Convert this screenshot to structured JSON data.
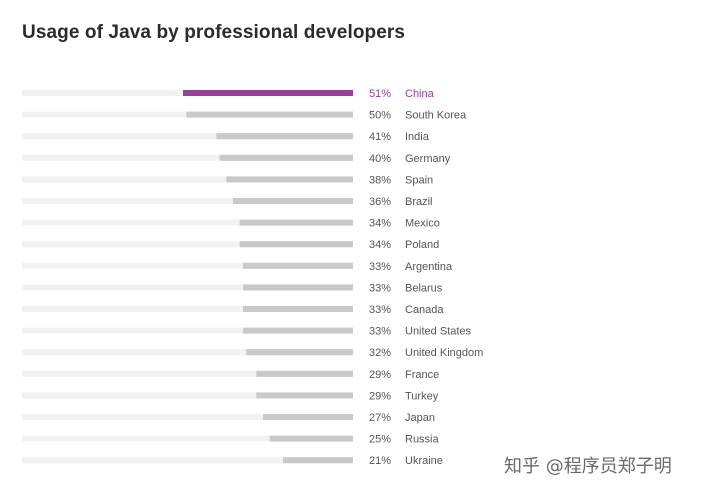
{
  "title": "Usage of Java by professional developers",
  "watermark": "知乎 @程序员郑子明",
  "colors": {
    "highlight": "#9a3f97",
    "bar": "#c9c9c9",
    "track": "#f2f2f2",
    "label": "#555555"
  },
  "chart_data": {
    "type": "bar",
    "orientation": "horizontal",
    "title": "Usage of Java by professional developers",
    "xlim": [
      0,
      100
    ],
    "highlighted_category": "China",
    "categories": [
      "China",
      "South Korea",
      "India",
      "Germany",
      "Spain",
      "Brazil",
      "Mexico",
      "Poland",
      "Argentina",
      "Belarus",
      "Canada",
      "United States",
      "United Kingdom",
      "France",
      "Turkey",
      "Japan",
      "Russia",
      "Ukraine"
    ],
    "values": [
      51,
      50,
      41,
      40,
      38,
      36,
      34,
      34,
      33,
      33,
      33,
      33,
      32,
      29,
      29,
      27,
      25,
      21
    ],
    "value_labels": [
      "51%",
      "50%",
      "41%",
      "40%",
      "38%",
      "36%",
      "34%",
      "34%",
      "33%",
      "33%",
      "33%",
      "33%",
      "32%",
      "29%",
      "29%",
      "27%",
      "25%",
      "21%"
    ]
  }
}
